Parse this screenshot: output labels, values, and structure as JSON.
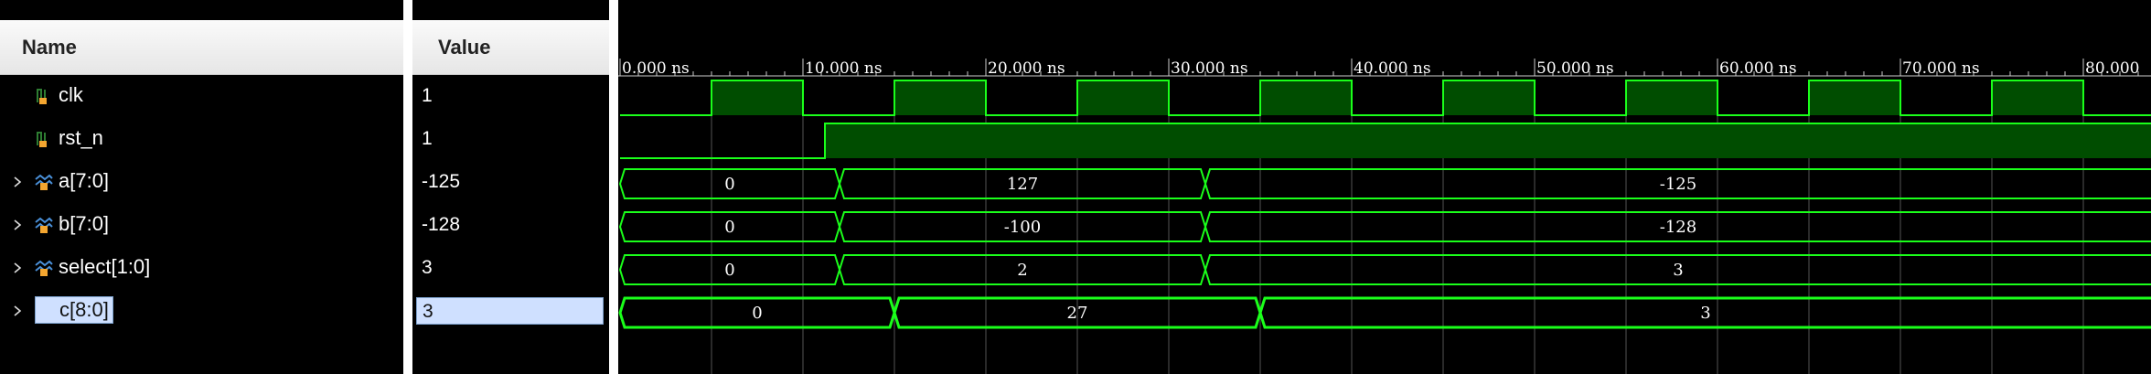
{
  "name_column": {
    "header": "Name"
  },
  "value_column": {
    "header": "Value"
  },
  "timeline": {
    "unit": "ns",
    "ticks": [
      "0.000 ns",
      "10.000 ns",
      "20.000 ns",
      "30.000 ns",
      "40.000 ns",
      "50.000 ns",
      "60.000 ns",
      "70.000 ns",
      "80.000"
    ]
  },
  "signals": [
    {
      "name": "clk",
      "value": "1",
      "type": "bit",
      "expandable": false,
      "selected": false
    },
    {
      "name": "rst_n",
      "value": "1",
      "type": "bit",
      "expandable": false,
      "selected": false
    },
    {
      "name": "a[7:0]",
      "value": "-125",
      "type": "bus",
      "expandable": true,
      "selected": false,
      "segments": [
        {
          "start": 0,
          "end": 12,
          "label": "0"
        },
        {
          "start": 12,
          "end": 32,
          "label": "127"
        },
        {
          "start": 32,
          "end": 84,
          "label": "-125"
        }
      ]
    },
    {
      "name": "b[7:0]",
      "value": "-128",
      "type": "bus",
      "expandable": true,
      "selected": false,
      "segments": [
        {
          "start": 0,
          "end": 12,
          "label": "0"
        },
        {
          "start": 12,
          "end": 32,
          "label": "-100"
        },
        {
          "start": 32,
          "end": 84,
          "label": "-128"
        }
      ]
    },
    {
      "name": "select[1:0]",
      "value": "3",
      "type": "bus",
      "expandable": true,
      "selected": false,
      "segments": [
        {
          "start": 0,
          "end": 12,
          "label": "0"
        },
        {
          "start": 12,
          "end": 32,
          "label": "2"
        },
        {
          "start": 32,
          "end": 84,
          "label": "3"
        }
      ]
    },
    {
      "name": "c[8:0]",
      "value": "3",
      "type": "bus",
      "expandable": true,
      "selected": true,
      "segments": [
        {
          "start": 0,
          "end": 15,
          "label": "0"
        },
        {
          "start": 15,
          "end": 35,
          "label": "27"
        },
        {
          "start": 35,
          "end": 84,
          "label": "3"
        }
      ]
    }
  ],
  "colors": {
    "wave": "#1aff1a",
    "high_fill": "#004d00",
    "grid": "#555555",
    "selection": "#cfe0ff"
  },
  "icons": {
    "bit": "bit-signal-icon",
    "bus": "bus-signal-icon",
    "output": "output-bus-icon"
  }
}
